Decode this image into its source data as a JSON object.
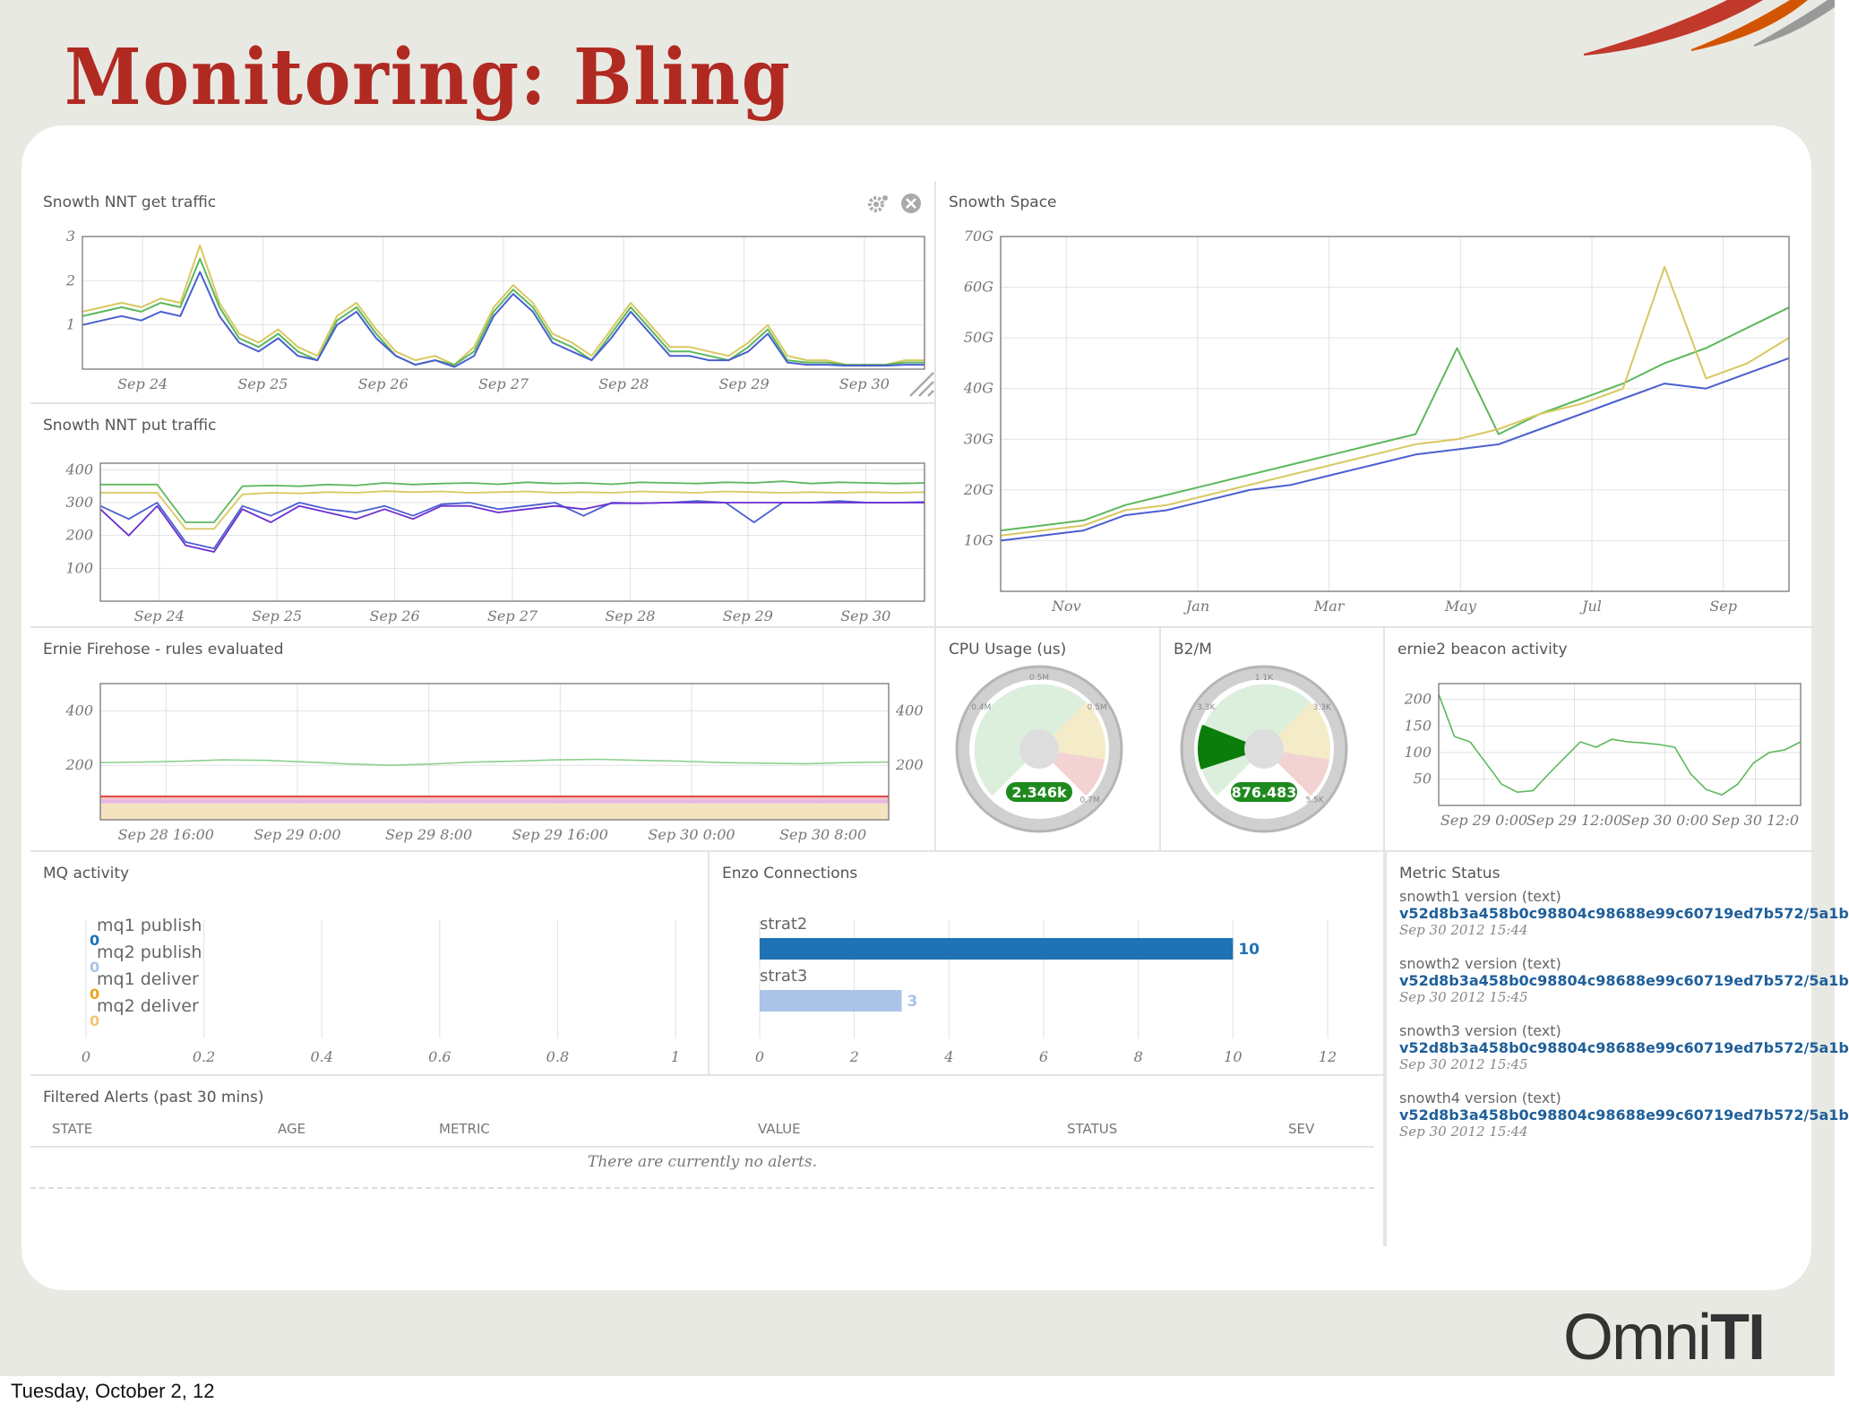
{
  "slide": {
    "title": "Monitoring: Bling",
    "footer_date": "Tuesday, October 2, 12",
    "logo": {
      "part1": "Omni",
      "part2": "TI"
    }
  },
  "colors": {
    "title_red": "#b02a22",
    "green": "#5cb85c",
    "yellow": "#d8c860",
    "blue": "#4a5fd0",
    "purple": "#6a2fd0",
    "gauge_green": "#1e8a1e",
    "bar_dark": "#1f72b4",
    "bar_light": "#a9c4e6"
  },
  "panels": {
    "nnt_get": {
      "title": "Snowth NNT get traffic",
      "icons": [
        "gear-icon",
        "close-icon",
        "resize-icon"
      ],
      "chart_data": {
        "type": "line",
        "x_labels": [
          "Sep 24",
          "Sep 25",
          "Sep 26",
          "Sep 27",
          "Sep 28",
          "Sep 29",
          "Sep 30"
        ],
        "y_ticks": [
          "1",
          "2",
          "3"
        ],
        "ylim": [
          0,
          3
        ],
        "series": [
          {
            "color": "#d8c860",
            "values": [
              1.3,
              1.4,
              1.5,
              1.4,
              1.6,
              1.5,
              2.8,
              1.5,
              0.8,
              0.6,
              0.9,
              0.5,
              0.3,
              1.2,
              1.5,
              0.9,
              0.4,
              0.2,
              0.3,
              0.1,
              0.5,
              1.4,
              1.9,
              1.5,
              0.8,
              0.6,
              0.3,
              0.9,
              1.5,
              1.0,
              0.5,
              0.5,
              0.4,
              0.3,
              0.6,
              1.0,
              0.3,
              0.2,
              0.2,
              0.1,
              0.1,
              0.1,
              0.2,
              0.2
            ]
          },
          {
            "color": "#5cb85c",
            "values": [
              1.2,
              1.3,
              1.4,
              1.3,
              1.5,
              1.4,
              2.5,
              1.4,
              0.7,
              0.5,
              0.8,
              0.4,
              0.2,
              1.1,
              1.4,
              0.8,
              0.3,
              0.1,
              0.2,
              0.1,
              0.4,
              1.3,
              1.8,
              1.4,
              0.7,
              0.5,
              0.2,
              0.8,
              1.4,
              0.9,
              0.4,
              0.4,
              0.3,
              0.2,
              0.5,
              0.9,
              0.2,
              0.15,
              0.15,
              0.1,
              0.1,
              0.1,
              0.15,
              0.15
            ]
          },
          {
            "color": "#4a5fd0",
            "values": [
              1.0,
              1.1,
              1.2,
              1.1,
              1.3,
              1.2,
              2.2,
              1.2,
              0.6,
              0.4,
              0.7,
              0.3,
              0.2,
              1.0,
              1.3,
              0.7,
              0.3,
              0.1,
              0.2,
              0.05,
              0.3,
              1.2,
              1.7,
              1.3,
              0.6,
              0.4,
              0.2,
              0.7,
              1.3,
              0.8,
              0.3,
              0.3,
              0.2,
              0.2,
              0.4,
              0.8,
              0.15,
              0.1,
              0.1,
              0.08,
              0.08,
              0.08,
              0.1,
              0.1
            ]
          }
        ]
      }
    },
    "nnt_put": {
      "title": "Snowth NNT put traffic",
      "chart_data": {
        "type": "line",
        "x_labels": [
          "Sep 24",
          "Sep 25",
          "Sep 26",
          "Sep 27",
          "Sep 28",
          "Sep 29",
          "Sep 30"
        ],
        "y_ticks": [
          "100",
          "200",
          "300",
          "400"
        ],
        "ylim": [
          0,
          420
        ],
        "series": [
          {
            "color": "#5cb85c",
            "values": [
              355,
              355,
              355,
              240,
              240,
              350,
              352,
              350,
              355,
              352,
              360,
              355,
              358,
              360,
              356,
              362,
              358,
              360,
              356,
              362,
              360,
              358,
              362,
              360,
              365,
              358,
              362,
              360,
              358,
              360
            ]
          },
          {
            "color": "#d8c860",
            "values": [
              330,
              330,
              330,
              220,
              220,
              325,
              330,
              328,
              332,
              330,
              335,
              332,
              334,
              330,
              332,
              334,
              330,
              332,
              330,
              334,
              332,
              330,
              334,
              332,
              330,
              332,
              330,
              332,
              330,
              332
            ]
          },
          {
            "color": "#4a5fd0",
            "values": [
              290,
              250,
              300,
              180,
              160,
              290,
              260,
              300,
              280,
              270,
              290,
              260,
              295,
              300,
              280,
              290,
              300,
              260,
              300,
              298,
              300,
              305,
              300,
              240,
              300,
              300,
              305,
              300,
              300,
              302
            ]
          },
          {
            "color": "#6a2fd0",
            "values": [
              280,
              200,
              290,
              170,
              150,
              280,
              240,
              290,
              270,
              250,
              280,
              250,
              290,
              290,
              270,
              280,
              290,
              280,
              298,
              298,
              300,
              300,
              300,
              300,
              300,
              300,
              300,
              300,
              300,
              300
            ]
          }
        ]
      }
    },
    "space": {
      "title": "Snowth Space",
      "chart_data": {
        "type": "line",
        "x_labels": [
          "Nov",
          "Jan",
          "Mar",
          "May",
          "Jul",
          "Sep"
        ],
        "y_ticks": [
          "10G",
          "20G",
          "30G",
          "40G",
          "50G",
          "60G",
          "70G"
        ],
        "ylim": [
          0,
          70
        ],
        "series": [
          {
            "color": "#5cb85c",
            "values": [
              12,
              13,
              14,
              17,
              19,
              21,
              23,
              25,
              27,
              29,
              31,
              48,
              31,
              35,
              38,
              41,
              45,
              48,
              52,
              56
            ]
          },
          {
            "color": "#d8c860",
            "values": [
              11,
              12,
              13,
              16,
              17,
              19,
              21,
              23,
              25,
              27,
              29,
              30,
              32,
              35,
              37,
              40,
              64,
              42,
              45,
              50
            ]
          },
          {
            "color": "#4a5fd0",
            "values": [
              10,
              11,
              12,
              15,
              16,
              18,
              20,
              21,
              23,
              25,
              27,
              28,
              29,
              32,
              35,
              38,
              41,
              40,
              43,
              46
            ]
          }
        ]
      }
    },
    "firehose": {
      "title": "Ernie Firehose - rules evaluated",
      "chart_data": {
        "type": "area",
        "x_labels": [
          "Sep 28 16:00",
          "Sep 29 0:00",
          "Sep 29 8:00",
          "Sep 29 16:00",
          "Sep 30 0:00",
          "Sep 30 8:00"
        ],
        "y_ticks": [
          "200",
          "400"
        ],
        "ylim": [
          0,
          500
        ],
        "series": [
          {
            "color": "#8fd08f",
            "values": [
              210,
              212,
              215,
              220,
              218,
              212,
              205,
              200,
              205,
              212,
              215,
              220,
              222,
              218,
              215,
              210,
              208,
              206,
              210,
              212
            ]
          }
        ]
      }
    },
    "cpu": {
      "title": "CPU Usage (us)",
      "value": "2.346k",
      "tick_labels": [
        "0.5M",
        "0.4M",
        "0.5M",
        "0.7M"
      ]
    },
    "b2m": {
      "title": "B2/M",
      "value": "876.483",
      "tick_labels": [
        "1.1K",
        "3.3K",
        "3.3K",
        "5.5K"
      ]
    },
    "beacon": {
      "title": "ernie2 beacon activity",
      "chart_data": {
        "type": "line",
        "x_labels": [
          "Sep 29 0:00",
          "Sep 29 12:00",
          "Sep 30 0:00",
          "Sep 30 12:0"
        ],
        "y_ticks": [
          "50",
          "100",
          "150",
          "200"
        ],
        "ylim": [
          0,
          230
        ],
        "series": [
          {
            "color": "#5cb85c",
            "values": [
              210,
              130,
              120,
              80,
              40,
              25,
              28,
              60,
              90,
              120,
              110,
              125,
              120,
              118,
              115,
              110,
              60,
              30,
              20,
              40,
              80,
              100,
              105,
              120
            ]
          }
        ]
      }
    },
    "mq": {
      "title": "MQ activity",
      "items": [
        {
          "label": "mq1 publish",
          "value": "0"
        },
        {
          "label": "mq2 publish",
          "value": "0"
        },
        {
          "label": "mq1 deliver",
          "value": "0"
        },
        {
          "label": "mq2 deliver",
          "value": "0"
        }
      ],
      "x_ticks": [
        "0",
        "0.2",
        "0.4",
        "0.6",
        "0.8",
        "1"
      ]
    },
    "enzo": {
      "title": "Enzo Connections",
      "chart_data": {
        "type": "bar",
        "categories": [
          "strat2",
          "strat3"
        ],
        "values": [
          10,
          3
        ],
        "xlim": [
          0,
          12
        ],
        "x_ticks": [
          "0",
          "2",
          "4",
          "6",
          "8",
          "10",
          "12"
        ]
      }
    },
    "metric_status": {
      "title": "Metric Status",
      "items": [
        {
          "name": "snowth1 version (text)",
          "value": "v52d8b3a458b0c98804c98688e99c60719ed7b572/5a1b",
          "time": "Sep 30 2012 15:44"
        },
        {
          "name": "snowth2 version (text)",
          "value": "v52d8b3a458b0c98804c98688e99c60719ed7b572/5a1b",
          "time": "Sep 30 2012 15:45"
        },
        {
          "name": "snowth3 version (text)",
          "value": "v52d8b3a458b0c98804c98688e99c60719ed7b572/5a1b",
          "time": "Sep 30 2012 15:45"
        },
        {
          "name": "snowth4 version (text)",
          "value": "v52d8b3a458b0c98804c98688e99c60719ed7b572/5a1b",
          "time": "Sep 30 2012 15:44"
        }
      ]
    },
    "alerts": {
      "title": "Filtered Alerts (past 30 mins)",
      "columns": [
        "STATE",
        "AGE",
        "METRIC",
        "VALUE",
        "STATUS",
        "SEV"
      ],
      "empty_text": "There are currently no alerts."
    }
  }
}
